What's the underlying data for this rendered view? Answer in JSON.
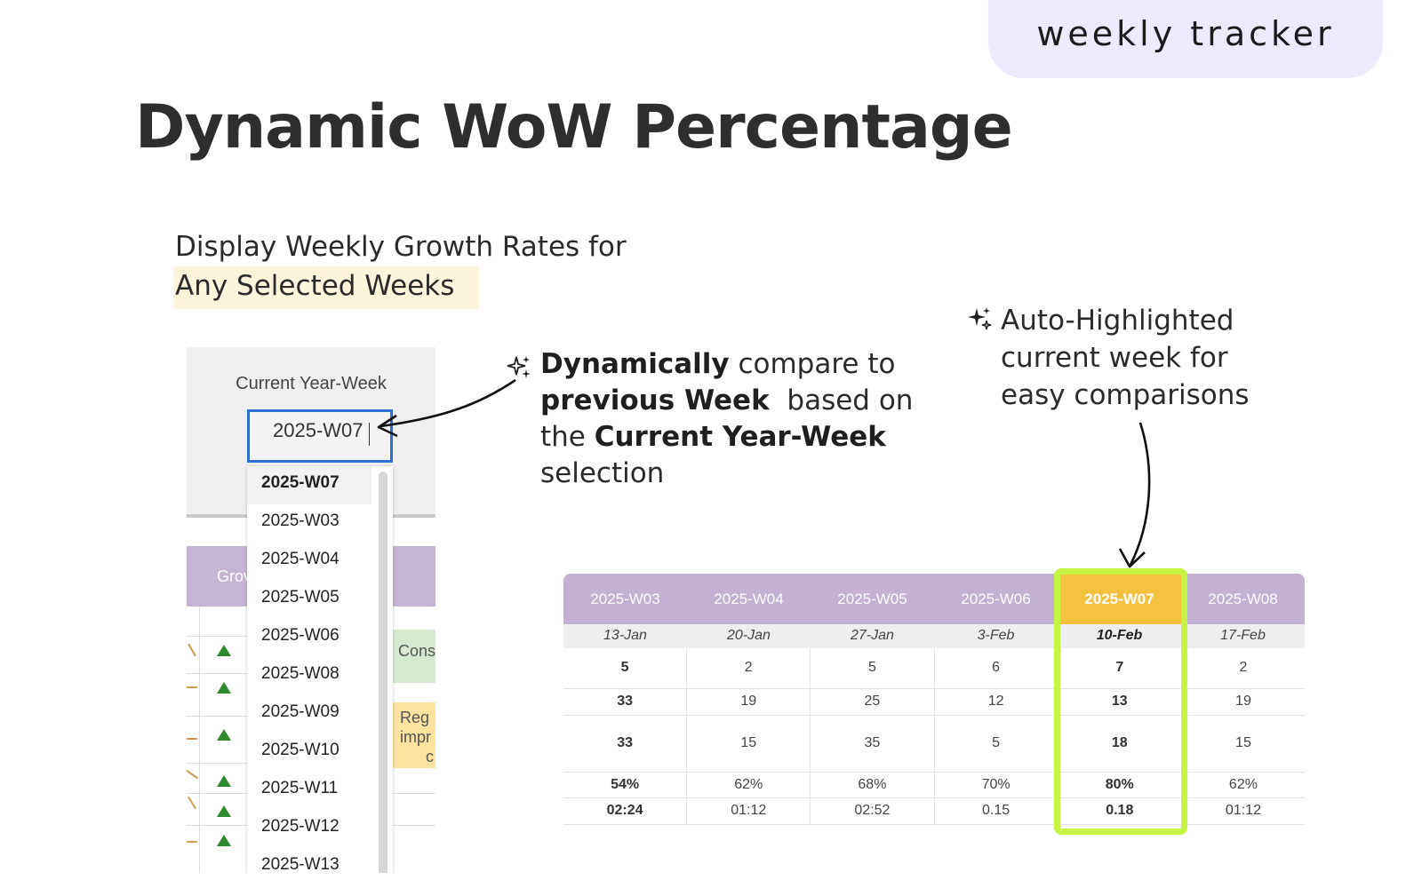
{
  "tag": "weekly tracker",
  "title": "Dynamic WoW Percentage",
  "subtitle": {
    "line1": "Display Weekly Growth Rates for",
    "line2": "Any Selected Weeks"
  },
  "sheet": {
    "label": "Current Year-Week",
    "input_value": "2025-W07",
    "group_header": "Grov",
    "cell_cons": "Cons",
    "cell_reg_1": "Reg",
    "cell_reg_2": "impr",
    "cell_reg_3": "c",
    "dropdown_options": [
      "2025-W07",
      "2025-W03",
      "2025-W04",
      "2025-W05",
      "2025-W06",
      "2025-W08",
      "2025-W09",
      "2025-W10",
      "2025-W11",
      "2025-W12",
      "2025-W13"
    ]
  },
  "note1": {
    "bold1": "Dynamically",
    "text1": " compare to",
    "bold2": "previous Week",
    "text2": "  based on",
    "text3": "the ",
    "bold3": "Current Year-Week",
    "text4": "selection"
  },
  "note2": {
    "line1": "Auto-Highlighted",
    "line2": "current week for",
    "line3": "easy comparisons"
  },
  "table": {
    "weeks": [
      "2025-W03",
      "2025-W04",
      "2025-W05",
      "2025-W06",
      "2025-W07",
      "2025-W08"
    ],
    "dates": [
      "13-Jan",
      "20-Jan",
      "27-Jan",
      "3-Feb",
      "10-Feb",
      "17-Feb"
    ],
    "current_index": 4,
    "rows": [
      [
        "5",
        "2",
        "5",
        "6",
        "7",
        "2"
      ],
      [
        "33",
        "19",
        "25",
        "12",
        "13",
        "19"
      ],
      [
        "33",
        "15",
        "35",
        "5",
        "18",
        "15"
      ],
      [
        "54%",
        "62%",
        "68%",
        "70%",
        "80%",
        "62%"
      ],
      [
        "02:24",
        "01:12",
        "02:52",
        "0.15",
        "0.18",
        "01:12"
      ]
    ]
  },
  "colors": {
    "header_purple": "#c3b0d2",
    "current_week": "#f4c23e",
    "highlight_green": "#c6f442",
    "input_blue": "#2f6fcf"
  }
}
